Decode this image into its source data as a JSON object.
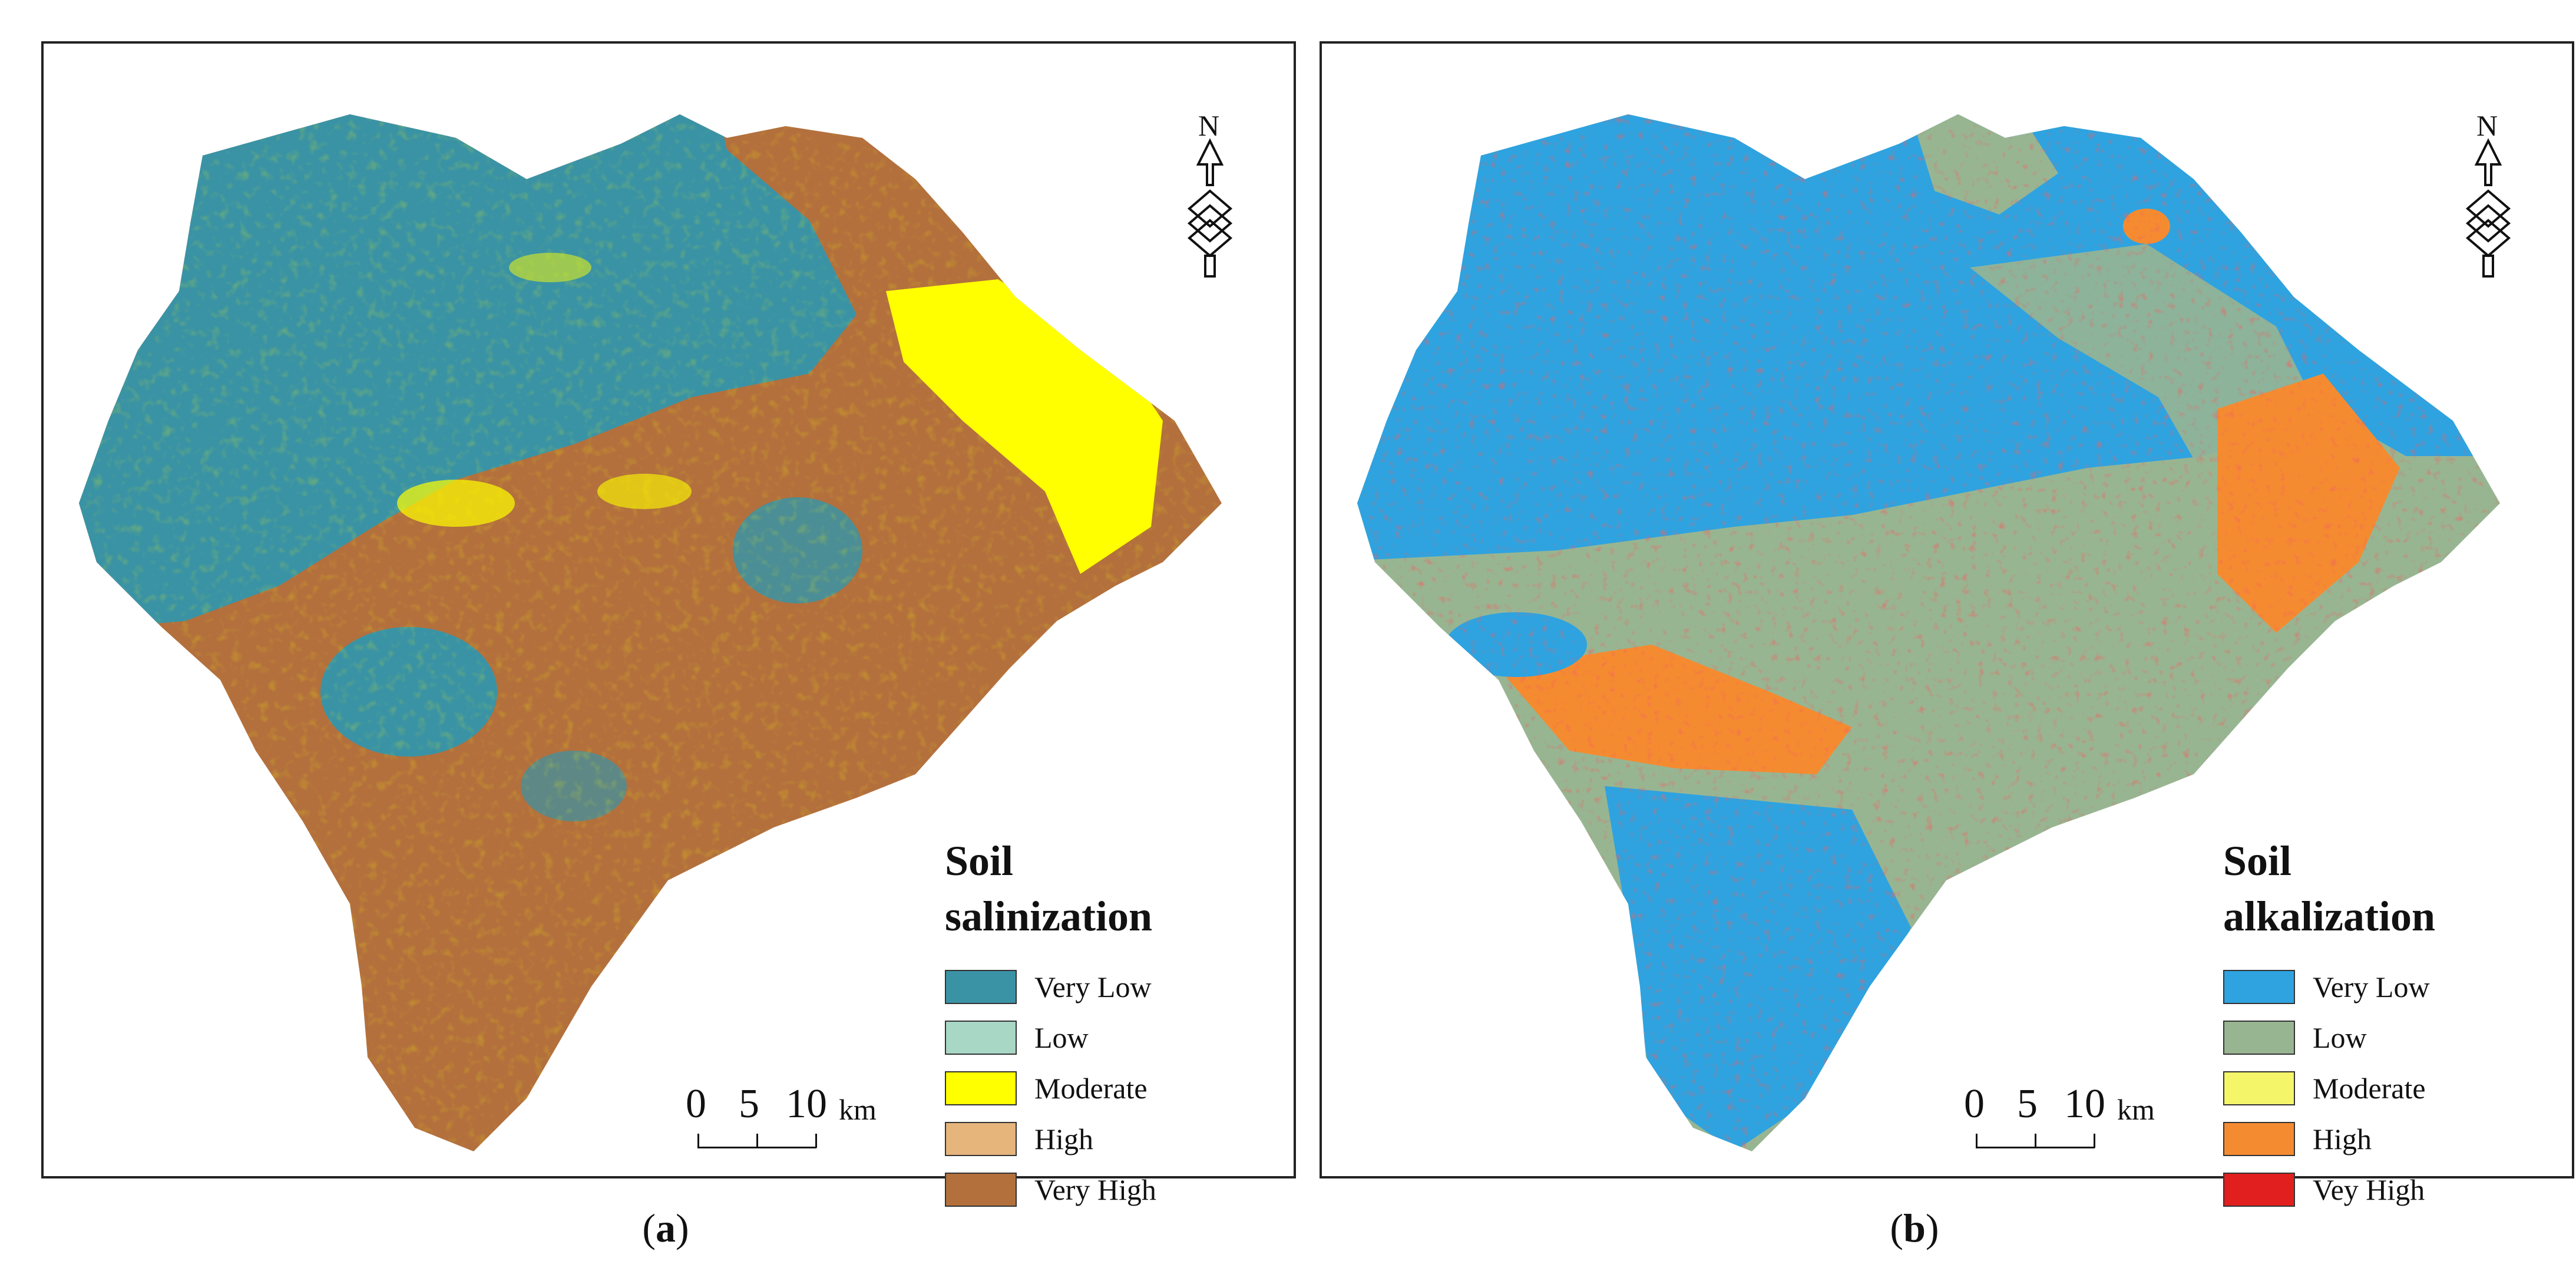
{
  "panels": [
    {
      "id": "a",
      "caption_prefix": "(",
      "caption_letter": "a",
      "caption_suffix": ")",
      "legend_title": "Soil\nsalinization",
      "legend": [
        {
          "label": "Very Low",
          "color": "#3a93a5"
        },
        {
          "label": "Low",
          "color": "#a8d8c5"
        },
        {
          "label": "Moderate",
          "color": "#ffff00"
        },
        {
          "label": "High",
          "color": "#e5b57c"
        },
        {
          "label": "Very High",
          "color": "#b3703d"
        }
      ],
      "north": "N",
      "scale_ticks": [
        "0",
        "5",
        "10"
      ],
      "scale_unit": "km"
    },
    {
      "id": "b",
      "caption_prefix": "(",
      "caption_letter": "b",
      "caption_suffix": ")",
      "legend_title": "Soil\nalkalization",
      "legend": [
        {
          "label": "Very Low",
          "color": "#2ea3e0"
        },
        {
          "label": "Low",
          "color": "#98b592"
        },
        {
          "label": "Moderate",
          "color": "#f5f56a"
        },
        {
          "label": "High",
          "color": "#f58b31"
        },
        {
          "label": "Vey High",
          "color": "#e11f1f"
        }
      ],
      "north": "N",
      "scale_ticks": [
        "0",
        "5",
        "10"
      ],
      "scale_unit": "km"
    }
  ]
}
